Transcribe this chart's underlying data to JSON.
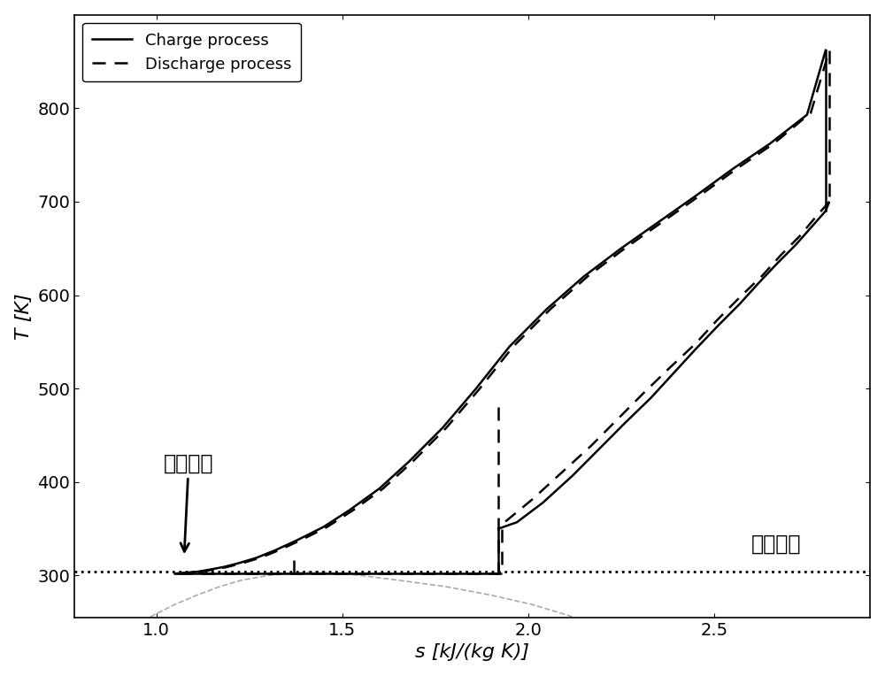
{
  "xlabel": "s [kJ/(kg K)]",
  "ylabel": "T [K]",
  "xlim": [
    0.78,
    2.92
  ],
  "ylim": [
    255,
    900
  ],
  "critical_T": 304.13,
  "legend_charge": "Charge process",
  "legend_discharge": "Discharge process",
  "annotation_supercritical": "超临界态",
  "annotation_critical_T": "临界温度",
  "line_color": "#000000",
  "saturation_color": "#aaaaaa",
  "background_color": "#ffffff",
  "xticks": [
    1.0,
    1.5,
    2.0,
    2.5
  ],
  "yticks": [
    300,
    400,
    500,
    600,
    700,
    800
  ],
  "charge_up_s": [
    1.05,
    1.08,
    1.11,
    1.14,
    1.18,
    1.22,
    1.27,
    1.32,
    1.38,
    1.45,
    1.52,
    1.6,
    1.68,
    1.77,
    1.86,
    1.95,
    2.05,
    2.15,
    2.25,
    2.35,
    2.45,
    2.55,
    2.65,
    2.75,
    2.8
  ],
  "charge_up_T": [
    302,
    303,
    304,
    306,
    309,
    313,
    319,
    327,
    338,
    352,
    370,
    393,
    422,
    458,
    500,
    545,
    585,
    620,
    650,
    678,
    706,
    735,
    762,
    793,
    862
  ],
  "charge_cool_s": [
    2.8,
    2.76,
    2.72,
    2.67,
    2.62,
    2.57,
    2.51,
    2.45,
    2.39,
    2.33,
    2.26,
    2.19,
    2.12,
    2.04,
    1.97,
    1.92
  ],
  "charge_cool_T": [
    690,
    672,
    654,
    634,
    613,
    591,
    567,
    542,
    516,
    490,
    463,
    435,
    407,
    378,
    357,
    350
  ],
  "dis_up_s": [
    1.06,
    1.09,
    1.12,
    1.15,
    1.19,
    1.23,
    1.28,
    1.33,
    1.39,
    1.46,
    1.53,
    1.61,
    1.69,
    1.78,
    1.87,
    1.96,
    2.06,
    2.16,
    2.26,
    2.36,
    2.46,
    2.56,
    2.66,
    2.76,
    2.81
  ],
  "dis_up_T": [
    302,
    303,
    304,
    306,
    309,
    313,
    319,
    327,
    338,
    352,
    370,
    393,
    422,
    458,
    500,
    545,
    585,
    620,
    650,
    678,
    706,
    735,
    762,
    795,
    862
  ],
  "dis_cool_s": [
    2.81,
    2.77,
    2.73,
    2.68,
    2.63,
    2.57,
    2.51,
    2.45,
    2.38,
    2.31,
    2.24,
    2.17,
    2.09,
    2.01,
    1.94,
    1.92
  ],
  "dis_cool_T": [
    700,
    682,
    663,
    643,
    621,
    598,
    574,
    548,
    522,
    495,
    467,
    439,
    410,
    381,
    358,
    350
  ],
  "sat_liq_s": [
    0.8,
    0.87,
    0.93,
    0.99,
    1.05,
    1.11,
    1.17,
    1.23,
    1.3,
    1.38,
    1.434
  ],
  "sat_liq_T": [
    216,
    230,
    244,
    257,
    269,
    279,
    288,
    295,
    300,
    303,
    304.13
  ],
  "sat_vap_s": [
    2.35,
    2.28,
    2.2,
    2.11,
    2.01,
    1.9,
    1.78,
    1.65,
    1.55,
    1.47,
    1.434
  ],
  "sat_vap_T": [
    216,
    230,
    244,
    257,
    269,
    279,
    288,
    295,
    300,
    303,
    304.13
  ]
}
